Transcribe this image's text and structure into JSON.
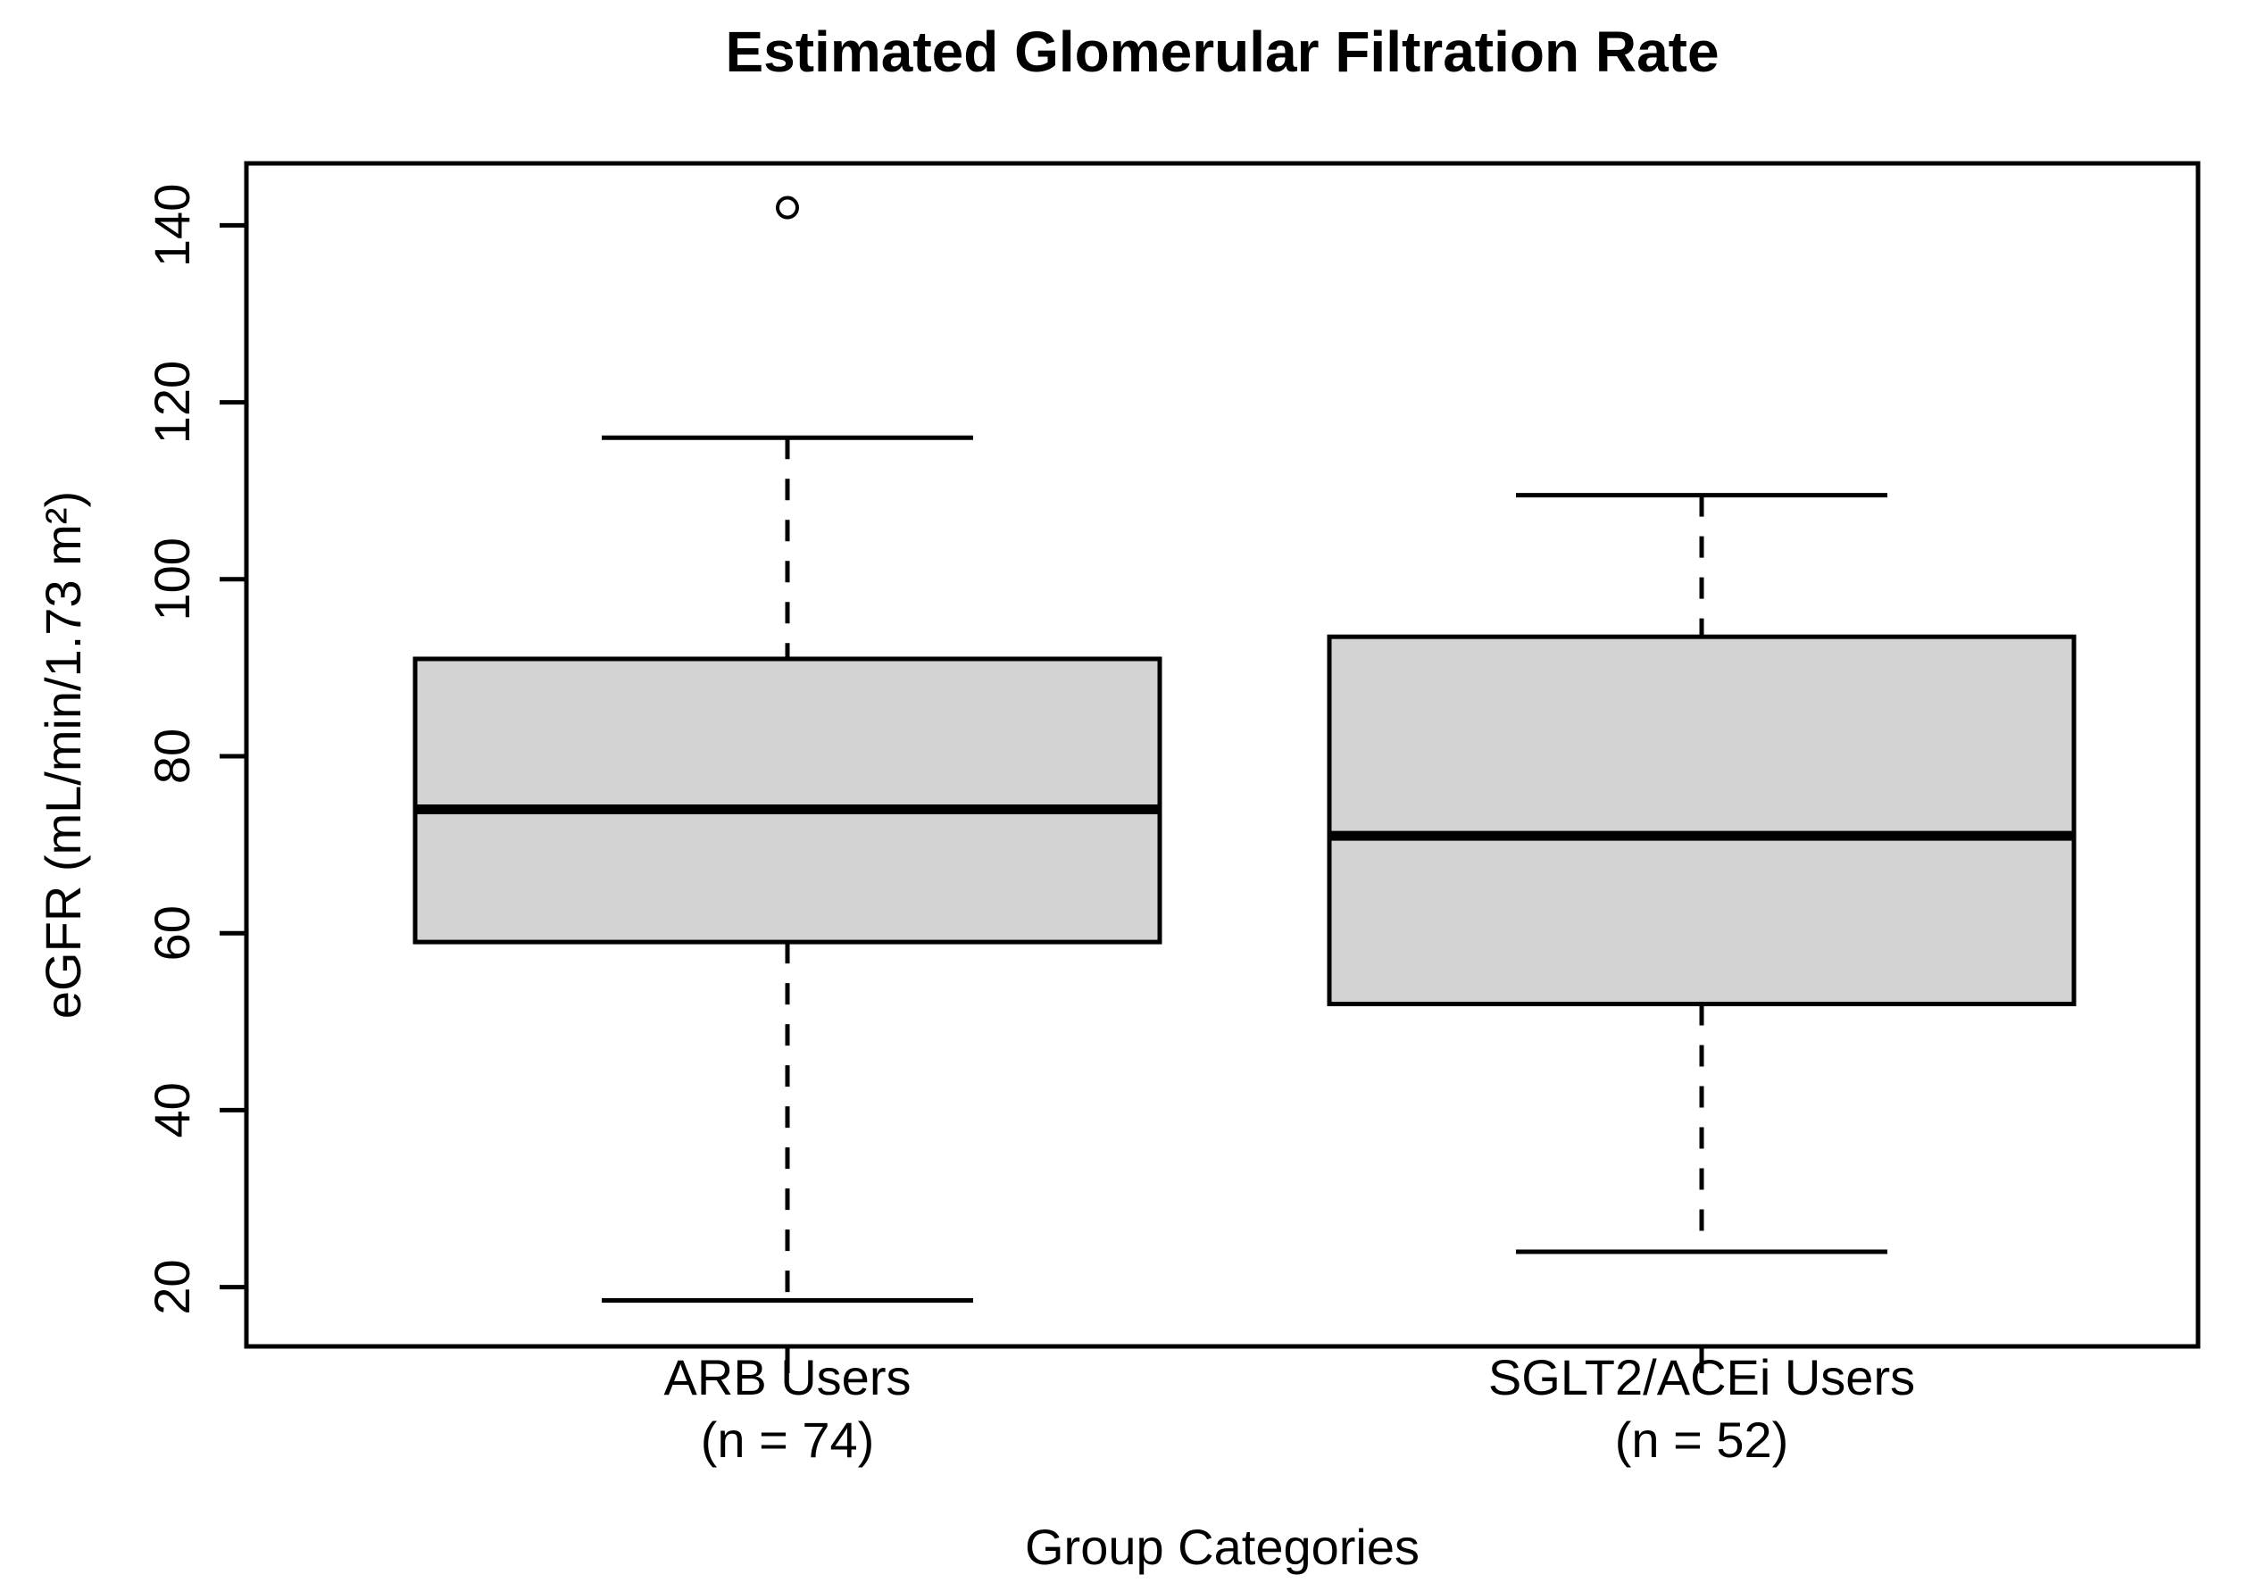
{
  "figure": {
    "background": "#ffffff",
    "foreground": "#000000"
  },
  "chart_data": {
    "type": "boxplot",
    "title": "Estimated Glomerular Filtration Rate",
    "xlabel": "Group Categories",
    "ylabel": "eGFR (mL/min/1.73 m²)",
    "ylim": [
      13.3,
      147.0
    ],
    "yticks": [
      20,
      40,
      60,
      80,
      100,
      120,
      140
    ],
    "grid": false,
    "legend": "none",
    "box_fill": "#D3D3D3",
    "box_stroke": "#000000",
    "groups": [
      {
        "label": "ARB Users",
        "sublabel": "(n = 74)",
        "n": 74,
        "lower_whisker": 18.5,
        "q1": 59,
        "median": 74,
        "q3": 91,
        "upper_whisker": 116,
        "outliers": [
          142
        ]
      },
      {
        "label": "SGLT2/ACEi Users",
        "sublabel": "(n = 52)",
        "n": 52,
        "lower_whisker": 24,
        "q1": 52,
        "median": 71,
        "q3": 93.5,
        "upper_whisker": 109.5,
        "outliers": []
      }
    ]
  }
}
